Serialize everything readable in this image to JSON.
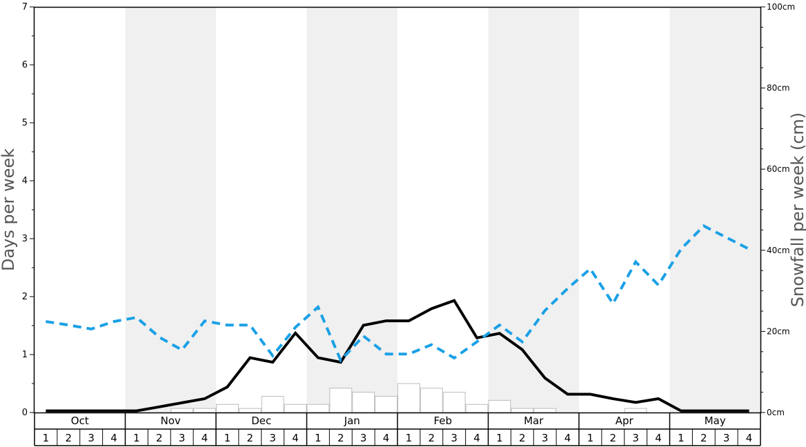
{
  "chart_data": {
    "type": "bar+line",
    "ylabel_left": "Days per week",
    "ylabel_right": "Snowfall per week (cm)",
    "ylim_left": [
      0,
      7
    ],
    "ylim_right": [
      0,
      100
    ],
    "left_ticks": [
      "0",
      "1",
      "2",
      "3",
      "4",
      "5",
      "6",
      "7"
    ],
    "right_ticks": [
      "0cm",
      "20cm",
      "40cm",
      "60cm",
      "80cm",
      "100cm"
    ],
    "months": [
      "Oct",
      "Nov",
      "Dec",
      "Jan",
      "Feb",
      "Mar",
      "Apr",
      "May"
    ],
    "week_labels": [
      "1",
      "2",
      "3",
      "4"
    ],
    "shaded_months": [
      "Nov",
      "Jan",
      "Mar",
      "May"
    ],
    "colors": {
      "shade": "#f0f0f0",
      "bar_fill": "#ffffff",
      "bar_stroke": "#bbbbbb",
      "solid_line": "#000000",
      "dashed_line": "#1aa0e6"
    },
    "series": [
      {
        "kind": "bar",
        "axis": "left",
        "values": [
          0,
          0,
          0,
          0,
          0,
          0,
          0.07,
          0.07,
          0.14,
          0.07,
          0.28,
          0.14,
          0.14,
          0.42,
          0.35,
          0.28,
          0.5,
          0.42,
          0.35,
          0.14,
          0.21,
          0.07,
          0.07,
          0,
          0,
          0,
          0.07,
          0,
          0,
          0,
          0,
          0
        ]
      },
      {
        "kind": "line",
        "style": "solid",
        "axis": "right",
        "values": [
          0.4,
          0.4,
          0.4,
          0.4,
          0.4,
          1.4,
          2.4,
          3.4,
          6.3,
          13.5,
          12.4,
          19.6,
          13.5,
          12.4,
          21.5,
          22.6,
          22.6,
          25.6,
          27.6,
          18.4,
          19.5,
          15.5,
          8.5,
          4.5,
          4.5,
          3.4,
          2.5,
          3.4,
          0.4,
          0.4,
          0.4,
          0.4
        ]
      },
      {
        "kind": "line",
        "style": "dashed",
        "axis": "left",
        "values": [
          1.57,
          1.51,
          1.44,
          1.57,
          1.64,
          1.3,
          1.08,
          1.58,
          1.51,
          1.51,
          0.98,
          1.47,
          1.82,
          0.9,
          1.32,
          1.01,
          1.01,
          1.17,
          0.94,
          1.22,
          1.51,
          1.22,
          1.76,
          2.14,
          2.48,
          1.88,
          2.6,
          2.2,
          2.82,
          3.22,
          3.02,
          2.82
        ]
      }
    ]
  }
}
